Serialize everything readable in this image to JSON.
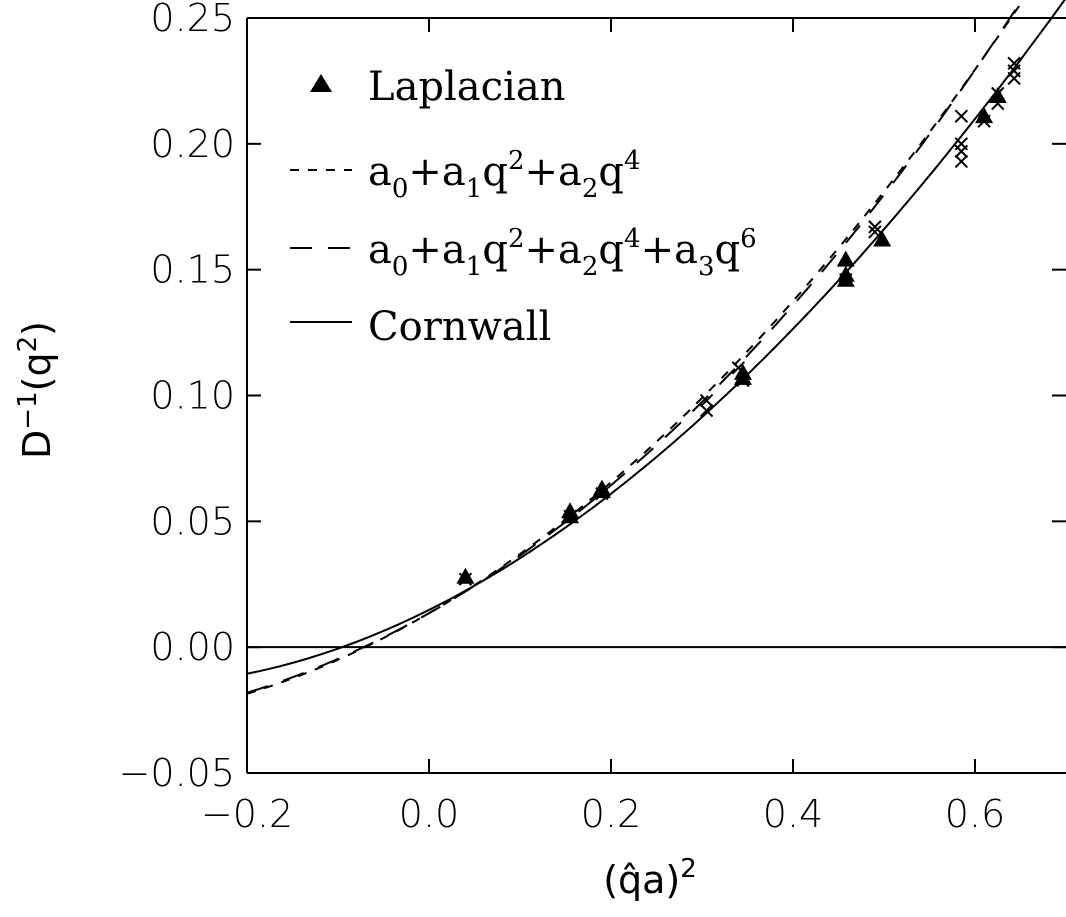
{
  "chart_data": {
    "type": "scatter",
    "xlabel": "(q̂a)",
    "xlabel_sup": "2",
    "ylabel": "D",
    "ylabel_sup": "−1",
    "ylabel_tail": "(q",
    "ylabel_tail_sup": "2",
    "ylabel_end": ")",
    "xlim": [
      -0.2,
      0.7
    ],
    "ylim": [
      -0.05,
      0.25
    ],
    "x_ticks": [
      "−0.2",
      "0.0",
      "0.2",
      "0.4",
      "0.6"
    ],
    "x_tick_values": [
      -0.2,
      0.0,
      0.2,
      0.4,
      0.6
    ],
    "y_ticks": [
      "−0.05",
      "0.00",
      "0.05",
      "0.10",
      "0.15",
      "0.20",
      "0.25"
    ],
    "y_tick_values": [
      -0.05,
      0.0,
      0.05,
      0.1,
      0.15,
      0.2,
      0.25
    ],
    "grid": false,
    "zero_line": true,
    "legend_position": "top-left",
    "legend": {
      "laplacian": "Laplacian",
      "fit2": {
        "a": "a",
        "q": "q",
        "plus": "+",
        "sub0": "0",
        "sub1": "1",
        "sub2": "2",
        "sup2": "2",
        "sup4": "4"
      },
      "fit3": {
        "a": "a",
        "q": "q",
        "plus": "+",
        "sub0": "0",
        "sub1": "1",
        "sub2": "2",
        "sub3": "3",
        "sup2": "2",
        "sup4": "4",
        "sup6": "6"
      },
      "cornwall": "Cornwall"
    },
    "series": [
      {
        "name": "Laplacian",
        "marker": "triangle",
        "points": [
          {
            "x": 0.04,
            "y": 0.028
          },
          {
            "x": 0.155,
            "y": 0.054
          },
          {
            "x": 0.155,
            "y": 0.052
          },
          {
            "x": 0.19,
            "y": 0.063
          },
          {
            "x": 0.19,
            "y": 0.062
          },
          {
            "x": 0.345,
            "y": 0.109
          },
          {
            "x": 0.345,
            "y": 0.107
          },
          {
            "x": 0.458,
            "y": 0.154
          },
          {
            "x": 0.458,
            "y": 0.148
          },
          {
            "x": 0.458,
            "y": 0.146
          },
          {
            "x": 0.498,
            "y": 0.162
          },
          {
            "x": 0.61,
            "y": 0.211
          },
          {
            "x": 0.625,
            "y": 0.219
          }
        ]
      },
      {
        "marker": "x",
        "points": [
          {
            "x": 0.04,
            "y": 0.027
          },
          {
            "x": 0.155,
            "y": 0.052
          },
          {
            "x": 0.19,
            "y": 0.061
          },
          {
            "x": 0.305,
            "y": 0.098
          },
          {
            "x": 0.305,
            "y": 0.094
          },
          {
            "x": 0.34,
            "y": 0.111
          },
          {
            "x": 0.345,
            "y": 0.106
          },
          {
            "x": 0.458,
            "y": 0.146
          },
          {
            "x": 0.49,
            "y": 0.167
          },
          {
            "x": 0.49,
            "y": 0.165
          },
          {
            "x": 0.585,
            "y": 0.211
          },
          {
            "x": 0.585,
            "y": 0.2
          },
          {
            "x": 0.585,
            "y": 0.197
          },
          {
            "x": 0.585,
            "y": 0.193
          },
          {
            "x": 0.61,
            "y": 0.209
          },
          {
            "x": 0.625,
            "y": 0.22
          },
          {
            "x": 0.625,
            "y": 0.216
          },
          {
            "x": 0.643,
            "y": 0.232
          },
          {
            "x": 0.643,
            "y": 0.229
          },
          {
            "x": 0.643,
            "y": 0.226
          }
        ]
      }
    ],
    "curves": [
      {
        "name": "a0+a1q2+a2q4",
        "style": "dashed-short",
        "coeffs": [
          0.0135,
          0.21,
          0.25,
          0.0
        ]
      },
      {
        "name": "a0+a1q2+a2q4+a3q6",
        "style": "dashed-long",
        "coeffs": [
          0.0135,
          0.205,
          0.24,
          0.03
        ]
      },
      {
        "name": "Cornwall",
        "style": "solid",
        "coeffs": [
          0.0148,
          0.18,
          0.26,
          -0.03
        ]
      }
    ]
  }
}
